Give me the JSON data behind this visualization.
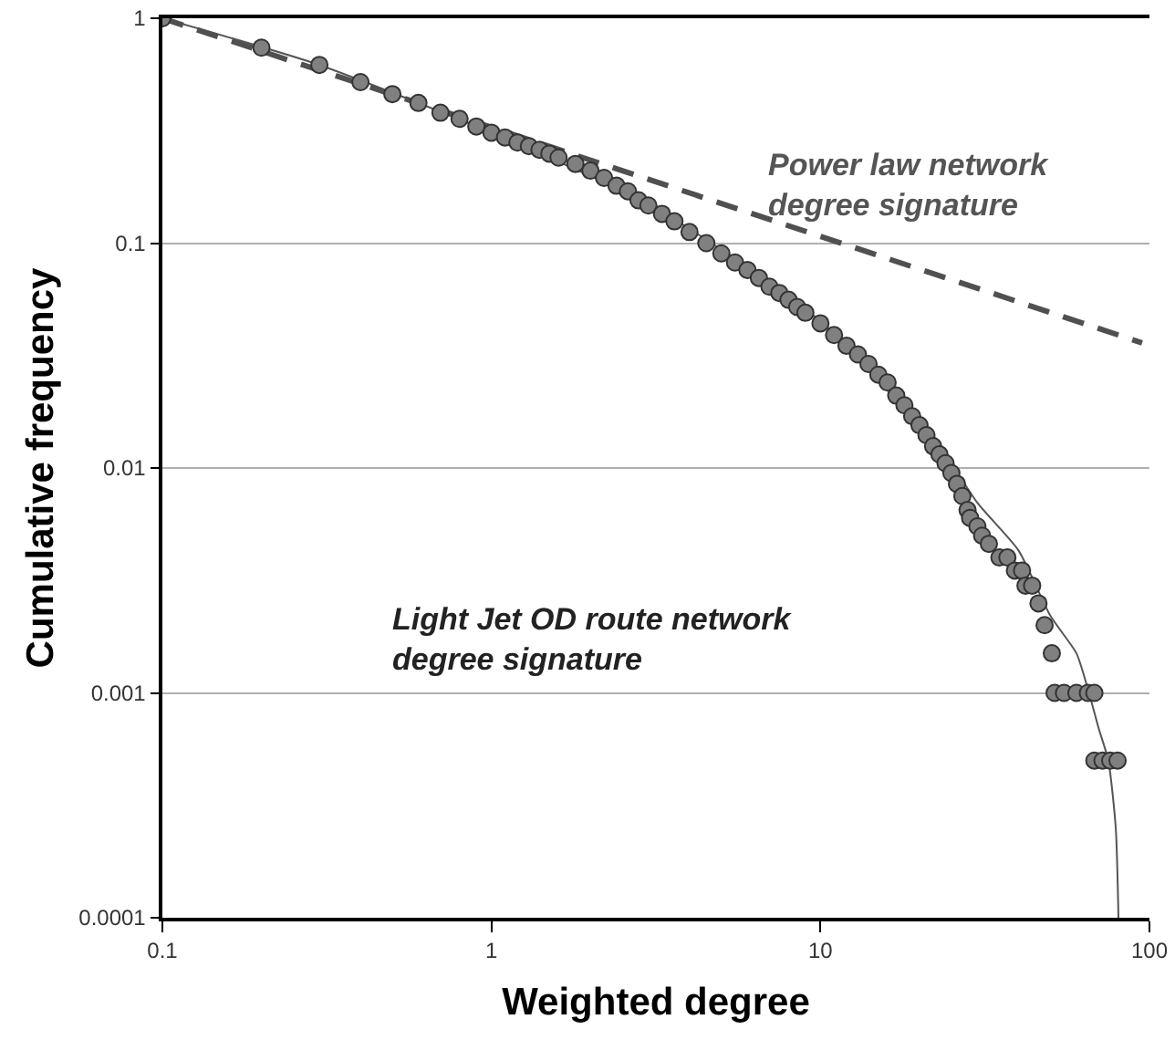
{
  "chart_data": {
    "type": "scatter",
    "xlabel": "Weighted degree",
    "ylabel": "Cumulative frequency",
    "log": "xy",
    "grid": "y",
    "xlim": [
      0.1,
      100
    ],
    "xticks": [
      0.1,
      1,
      10,
      100
    ],
    "ylim": [
      0.0001,
      1
    ],
    "yticks": [
      0.0001,
      0.001,
      0.01,
      0.1,
      1
    ],
    "annotations": [
      "Power law network degree signature",
      "Light Jet OD route network degree signature"
    ],
    "series": [
      {
        "type": "scatter",
        "color": "#808080",
        "marker": "circle",
        "x": [
          0.1,
          0.2,
          0.3,
          0.4,
          0.5,
          0.6,
          0.7,
          0.8,
          0.9,
          1.0,
          1.1,
          1.2,
          1.3,
          1.4,
          1.5,
          1.6,
          1.8,
          2,
          2.2,
          2.4,
          2.6,
          2.8,
          3,
          3.3,
          3.6,
          4,
          4.5,
          5,
          5.5,
          6,
          6.5,
          7,
          7.5,
          8,
          8.5,
          9,
          10,
          11,
          12,
          13,
          14,
          15,
          16,
          17,
          18,
          19,
          20,
          21,
          22,
          23,
          24,
          25,
          26,
          27,
          28,
          28.5,
          30,
          31,
          32.5,
          35,
          37,
          39,
          41,
          42,
          44,
          46,
          48,
          50.5,
          51.5,
          55,
          60,
          65,
          68,
          68,
          72,
          76,
          80
        ],
        "values": [
          1,
          0.74,
          0.62,
          0.52,
          0.46,
          0.42,
          0.38,
          0.357,
          0.33,
          0.31,
          0.295,
          0.28,
          0.27,
          0.26,
          0.25,
          0.24,
          0.225,
          0.21,
          0.195,
          0.18,
          0.17,
          0.155,
          0.147,
          0.135,
          0.125,
          0.112,
          0.1,
          0.09,
          0.082,
          0.076,
          0.07,
          0.064,
          0.06,
          0.056,
          0.052,
          0.049,
          0.044,
          0.039,
          0.035,
          0.032,
          0.029,
          0.026,
          0.024,
          0.021,
          0.019,
          0.017,
          0.0155,
          0.014,
          0.0125,
          0.0115,
          0.0105,
          0.0095,
          0.0085,
          0.0075,
          0.0065,
          0.006,
          0.0055,
          0.005,
          0.0046,
          0.004,
          0.004,
          0.0035,
          0.0035,
          0.003,
          0.003,
          0.0025,
          0.002,
          0.0015,
          0.001,
          0.001,
          0.001,
          0.001,
          0.001,
          0.0005,
          0.0005,
          0.0005,
          0.0005
        ]
      },
      {
        "type": "line",
        "color": "#555555",
        "marker": "none",
        "line_style": "solid",
        "x": [
          0.1,
          0.3,
          1,
          3,
          6,
          10,
          20,
          30,
          40,
          50,
          60,
          65,
          70,
          75,
          79,
          80.5
        ],
        "values": [
          1,
          0.62,
          0.31,
          0.15,
          0.078,
          0.045,
          0.017,
          0.007,
          0.0043,
          0.0022,
          0.0015,
          0.00104,
          0.0007,
          0.0005,
          0.00025,
          0.0001
        ]
      },
      {
        "type": "line",
        "color": "#505050",
        "marker": "none",
        "line_style": "dashed",
        "x": [
          0.1,
          95
        ],
        "values": [
          1,
          0.036
        ]
      }
    ]
  }
}
